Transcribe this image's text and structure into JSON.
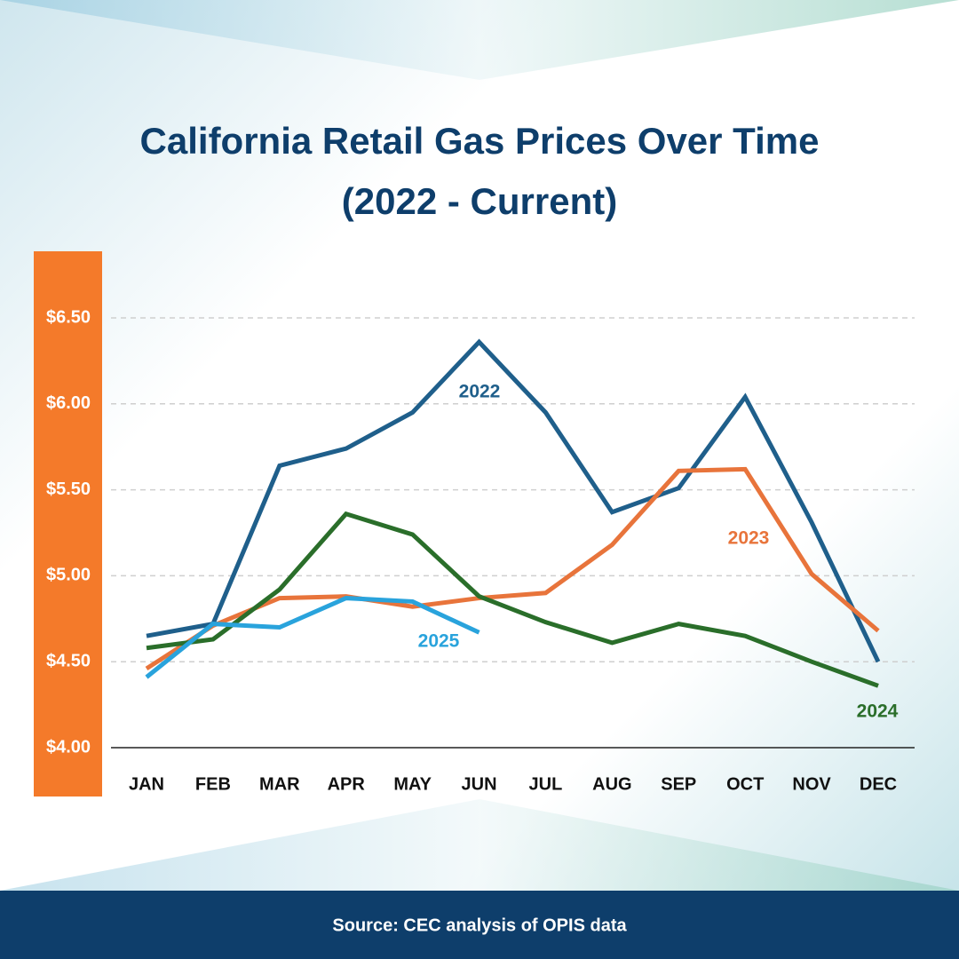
{
  "chart_data": {
    "type": "line",
    "title": "California Retail Gas Prices Over Time",
    "subtitle": "(2022 - Current)",
    "source": "Source: CEC analysis of OPIS data",
    "categories": [
      "JAN",
      "FEB",
      "MAR",
      "APR",
      "MAY",
      "JUN",
      "JUL",
      "AUG",
      "SEP",
      "OCT",
      "NOV",
      "DEC"
    ],
    "series": [
      {
        "name": "2022",
        "color": "#1f5f8b",
        "values": [
          4.65,
          4.72,
          5.64,
          5.74,
          5.95,
          6.36,
          5.95,
          5.37,
          5.51,
          6.04,
          5.31,
          4.5
        ]
      },
      {
        "name": "2023",
        "color": "#e8743b",
        "values": [
          4.46,
          4.71,
          4.87,
          4.88,
          4.82,
          4.87,
          4.9,
          5.18,
          5.61,
          5.62,
          5.01,
          4.68
        ]
      },
      {
        "name": "2024",
        "color": "#2a6e2a",
        "values": [
          4.58,
          4.63,
          4.92,
          5.36,
          5.24,
          4.88,
          4.73,
          4.61,
          4.72,
          4.65,
          4.5,
          4.36
        ]
      },
      {
        "name": "2025",
        "color": "#29a3dc",
        "values": [
          4.41,
          4.72,
          4.7,
          4.87,
          4.85,
          4.67,
          null,
          null,
          null,
          null,
          null,
          null
        ]
      }
    ],
    "ylim": [
      4.0,
      6.5
    ],
    "yticks": [
      {
        "value": 4.0,
        "label": "$4.00"
      },
      {
        "value": 4.5,
        "label": "$4.50"
      },
      {
        "value": 5.0,
        "label": "$5.00"
      },
      {
        "value": 5.5,
        "label": "$5.50"
      },
      {
        "value": 6.0,
        "label": "$6.00"
      },
      {
        "value": 6.5,
        "label": "$6.50"
      }
    ],
    "grid": true
  }
}
